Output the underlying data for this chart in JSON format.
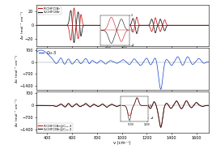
{
  "xlabel": "ν (cm⁻¹)",
  "panel1_ylabel": "Δε (mol⁻¹ cm⁻¹)",
  "panel2_ylabel": "Δε (mol⁻¹ cm⁻¹)",
  "panel3_ylabel": "Δε (mol⁻¹ cm⁻¹)",
  "xmin": 310,
  "xmax": 1700,
  "panel1_ylim": [
    -30,
    30
  ],
  "panel2_ylim": [
    -1600,
    800
  ],
  "panel3_ylim": [
    -1600,
    800
  ],
  "panel1_yticks": [
    -20,
    0,
    20
  ],
  "panel2_yticks": [
    -1400,
    -700,
    0,
    700
  ],
  "panel3_yticks": [
    -1400,
    -700,
    0,
    700
  ],
  "xticks": [
    400,
    600,
    800,
    1000,
    1200,
    1400,
    1600
  ],
  "color_R": "#cc1111",
  "color_S": "#111111",
  "color_blue": "#2255cc",
  "lw_main": 0.55,
  "legend1_labels": [
    "R-CHFClBr",
    "S-CHFClBr"
  ],
  "legend2_label": "C₈₂-3",
  "legend3_labels": [
    "R-CHFClBr@C₈₂-3",
    "S-CHFClBr@C₈₂-3"
  ]
}
